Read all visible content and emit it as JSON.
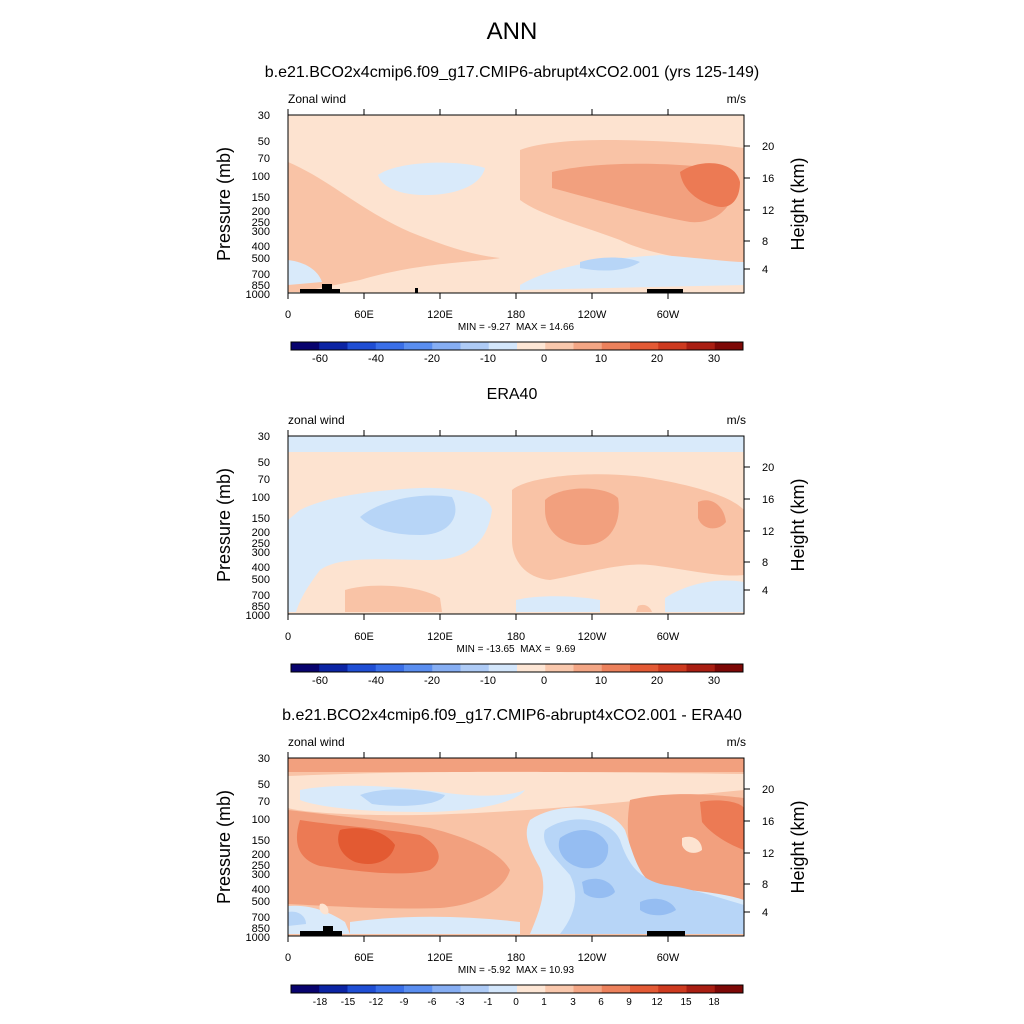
{
  "page": {
    "title": "ANN"
  },
  "chart_data": [
    {
      "type": "heatmap",
      "title": "b.e21.BCO2x4cmip6.f09_g17.CMIP6-abrupt4xCO2.001 (yrs 125-149)",
      "left_label": "Zonal wind",
      "right_label": "m/s",
      "ylabel": "Pressure (mb)",
      "y2label": "Height (km)",
      "xticks": [
        "0",
        "60E",
        "120E",
        "180",
        "120W",
        "60W"
      ],
      "yticks": [
        "30",
        "50",
        "70",
        "100",
        "150",
        "200",
        "250",
        "300",
        "400",
        "500",
        "700",
        "850",
        "1000"
      ],
      "y2ticks": [
        "20",
        "16",
        "12",
        "8",
        "4"
      ],
      "stats": "MIN = -9.27  MAX = 14.66",
      "colorbar_labels": [
        "-60",
        "-40",
        "-20",
        "-10",
        "0",
        "10",
        "20",
        "30"
      ],
      "colors": [
        "#fde3d0",
        "#d9eafa",
        "#f9c3a6",
        "#f2a07e",
        "#ec7a54",
        "#b7d5f7"
      ]
    },
    {
      "type": "heatmap",
      "title": "ERA40",
      "left_label": "zonal wind",
      "right_label": "m/s",
      "ylabel": "Pressure (mb)",
      "y2label": "Height (km)",
      "xticks": [
        "0",
        "60E",
        "120E",
        "180",
        "120W",
        "60W"
      ],
      "yticks": [
        "30",
        "50",
        "70",
        "100",
        "150",
        "200",
        "250",
        "300",
        "400",
        "500",
        "700",
        "850",
        "1000"
      ],
      "y2ticks": [
        "20",
        "16",
        "12",
        "8",
        "4"
      ],
      "stats": "MIN = -13.65  MAX =  9.69",
      "colorbar_labels": [
        "-60",
        "-40",
        "-20",
        "-10",
        "0",
        "10",
        "20",
        "30"
      ],
      "colors": [
        "#fde3d0",
        "#d9eafa",
        "#f9c3a6",
        "#f2a07e",
        "#b7d5f7"
      ]
    },
    {
      "type": "heatmap",
      "title": "b.e21.BCO2x4cmip6.f09_g17.CMIP6-abrupt4xCO2.001 - ERA40",
      "left_label": "zonal wind",
      "right_label": "m/s",
      "ylabel": "Pressure (mb)",
      "y2label": "Height (km)",
      "xticks": [
        "0",
        "60E",
        "120E",
        "180",
        "120W",
        "60W"
      ],
      "yticks": [
        "30",
        "50",
        "70",
        "100",
        "150",
        "200",
        "250",
        "300",
        "400",
        "500",
        "700",
        "850",
        "1000"
      ],
      "y2ticks": [
        "20",
        "16",
        "12",
        "8",
        "4"
      ],
      "stats": "MIN = -5.92  MAX = 10.93",
      "colorbar_labels": [
        "-18",
        "-15",
        "-12",
        "-9",
        "-6",
        "-3",
        "-1",
        "0",
        "1",
        "3",
        "6",
        "9",
        "12",
        "15",
        "18"
      ],
      "colors": [
        "#f9c3a6",
        "#f2a07e",
        "#ec7a54",
        "#e35a32",
        "#d9eafa",
        "#b7d5f7",
        "#95bdf2",
        "#fde3d0"
      ]
    }
  ],
  "colorbar": {
    "colors": [
      "#08036e",
      "#0b24a4",
      "#1f4ed4",
      "#3a6fe8",
      "#5a8ef0",
      "#86aef3",
      "#aecbf6",
      "#d3e6fb",
      "#fde6d5",
      "#f9c8ad",
      "#f3a685",
      "#ec815c",
      "#e35a35",
      "#cd3a1f",
      "#a91e12",
      "#7d0806"
    ]
  }
}
